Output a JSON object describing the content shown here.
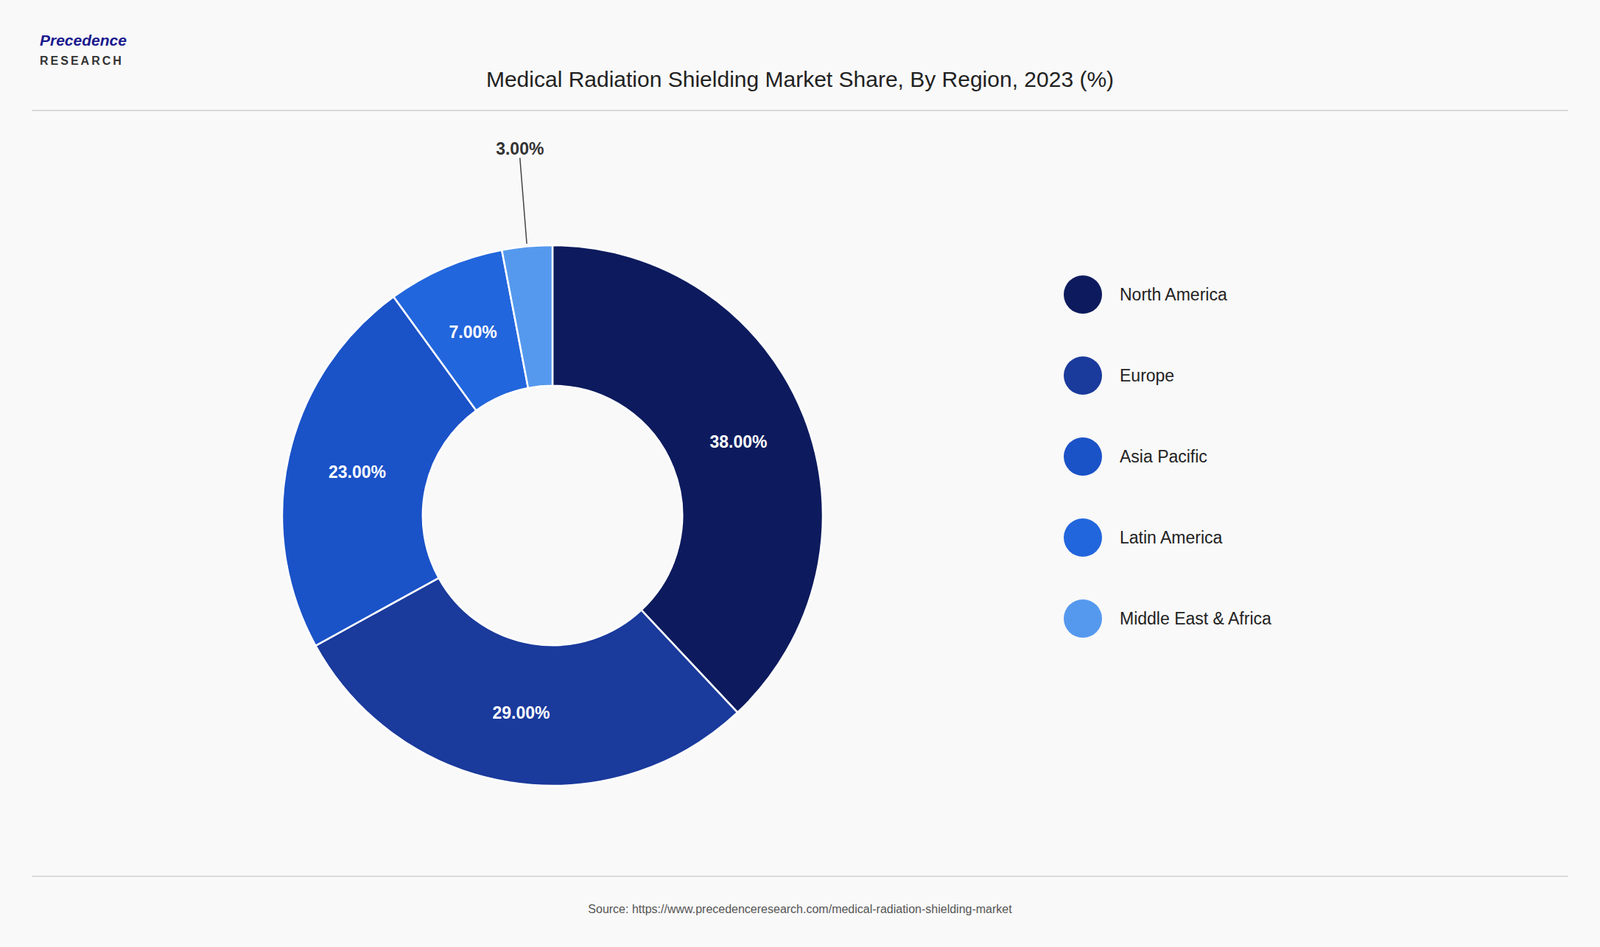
{
  "chart_data": {
    "type": "pie",
    "title": "Medical Radiation Shielding Market Share, By Region, 2023 (%)",
    "categories": [
      "North America",
      "Europe",
      "Asia Pacific",
      "Latin America",
      "Middle East & Africa"
    ],
    "values": [
      38.0,
      29.0,
      23.0,
      7.0,
      3.0
    ],
    "value_labels": [
      "38.00%",
      "29.00%",
      "23.00%",
      "7.00%",
      "3.00%"
    ],
    "colors": [
      "#0d1b5e",
      "#1a3a9c",
      "#1a52c8",
      "#2266dd",
      "#5599ee"
    ],
    "data_labels": true,
    "legend": "right",
    "annotations": [
      "Source: https://www.precedenceresearch.com/medical-radiation-shielding-market",
      "Precedence",
      "RESEARCH"
    ]
  }
}
